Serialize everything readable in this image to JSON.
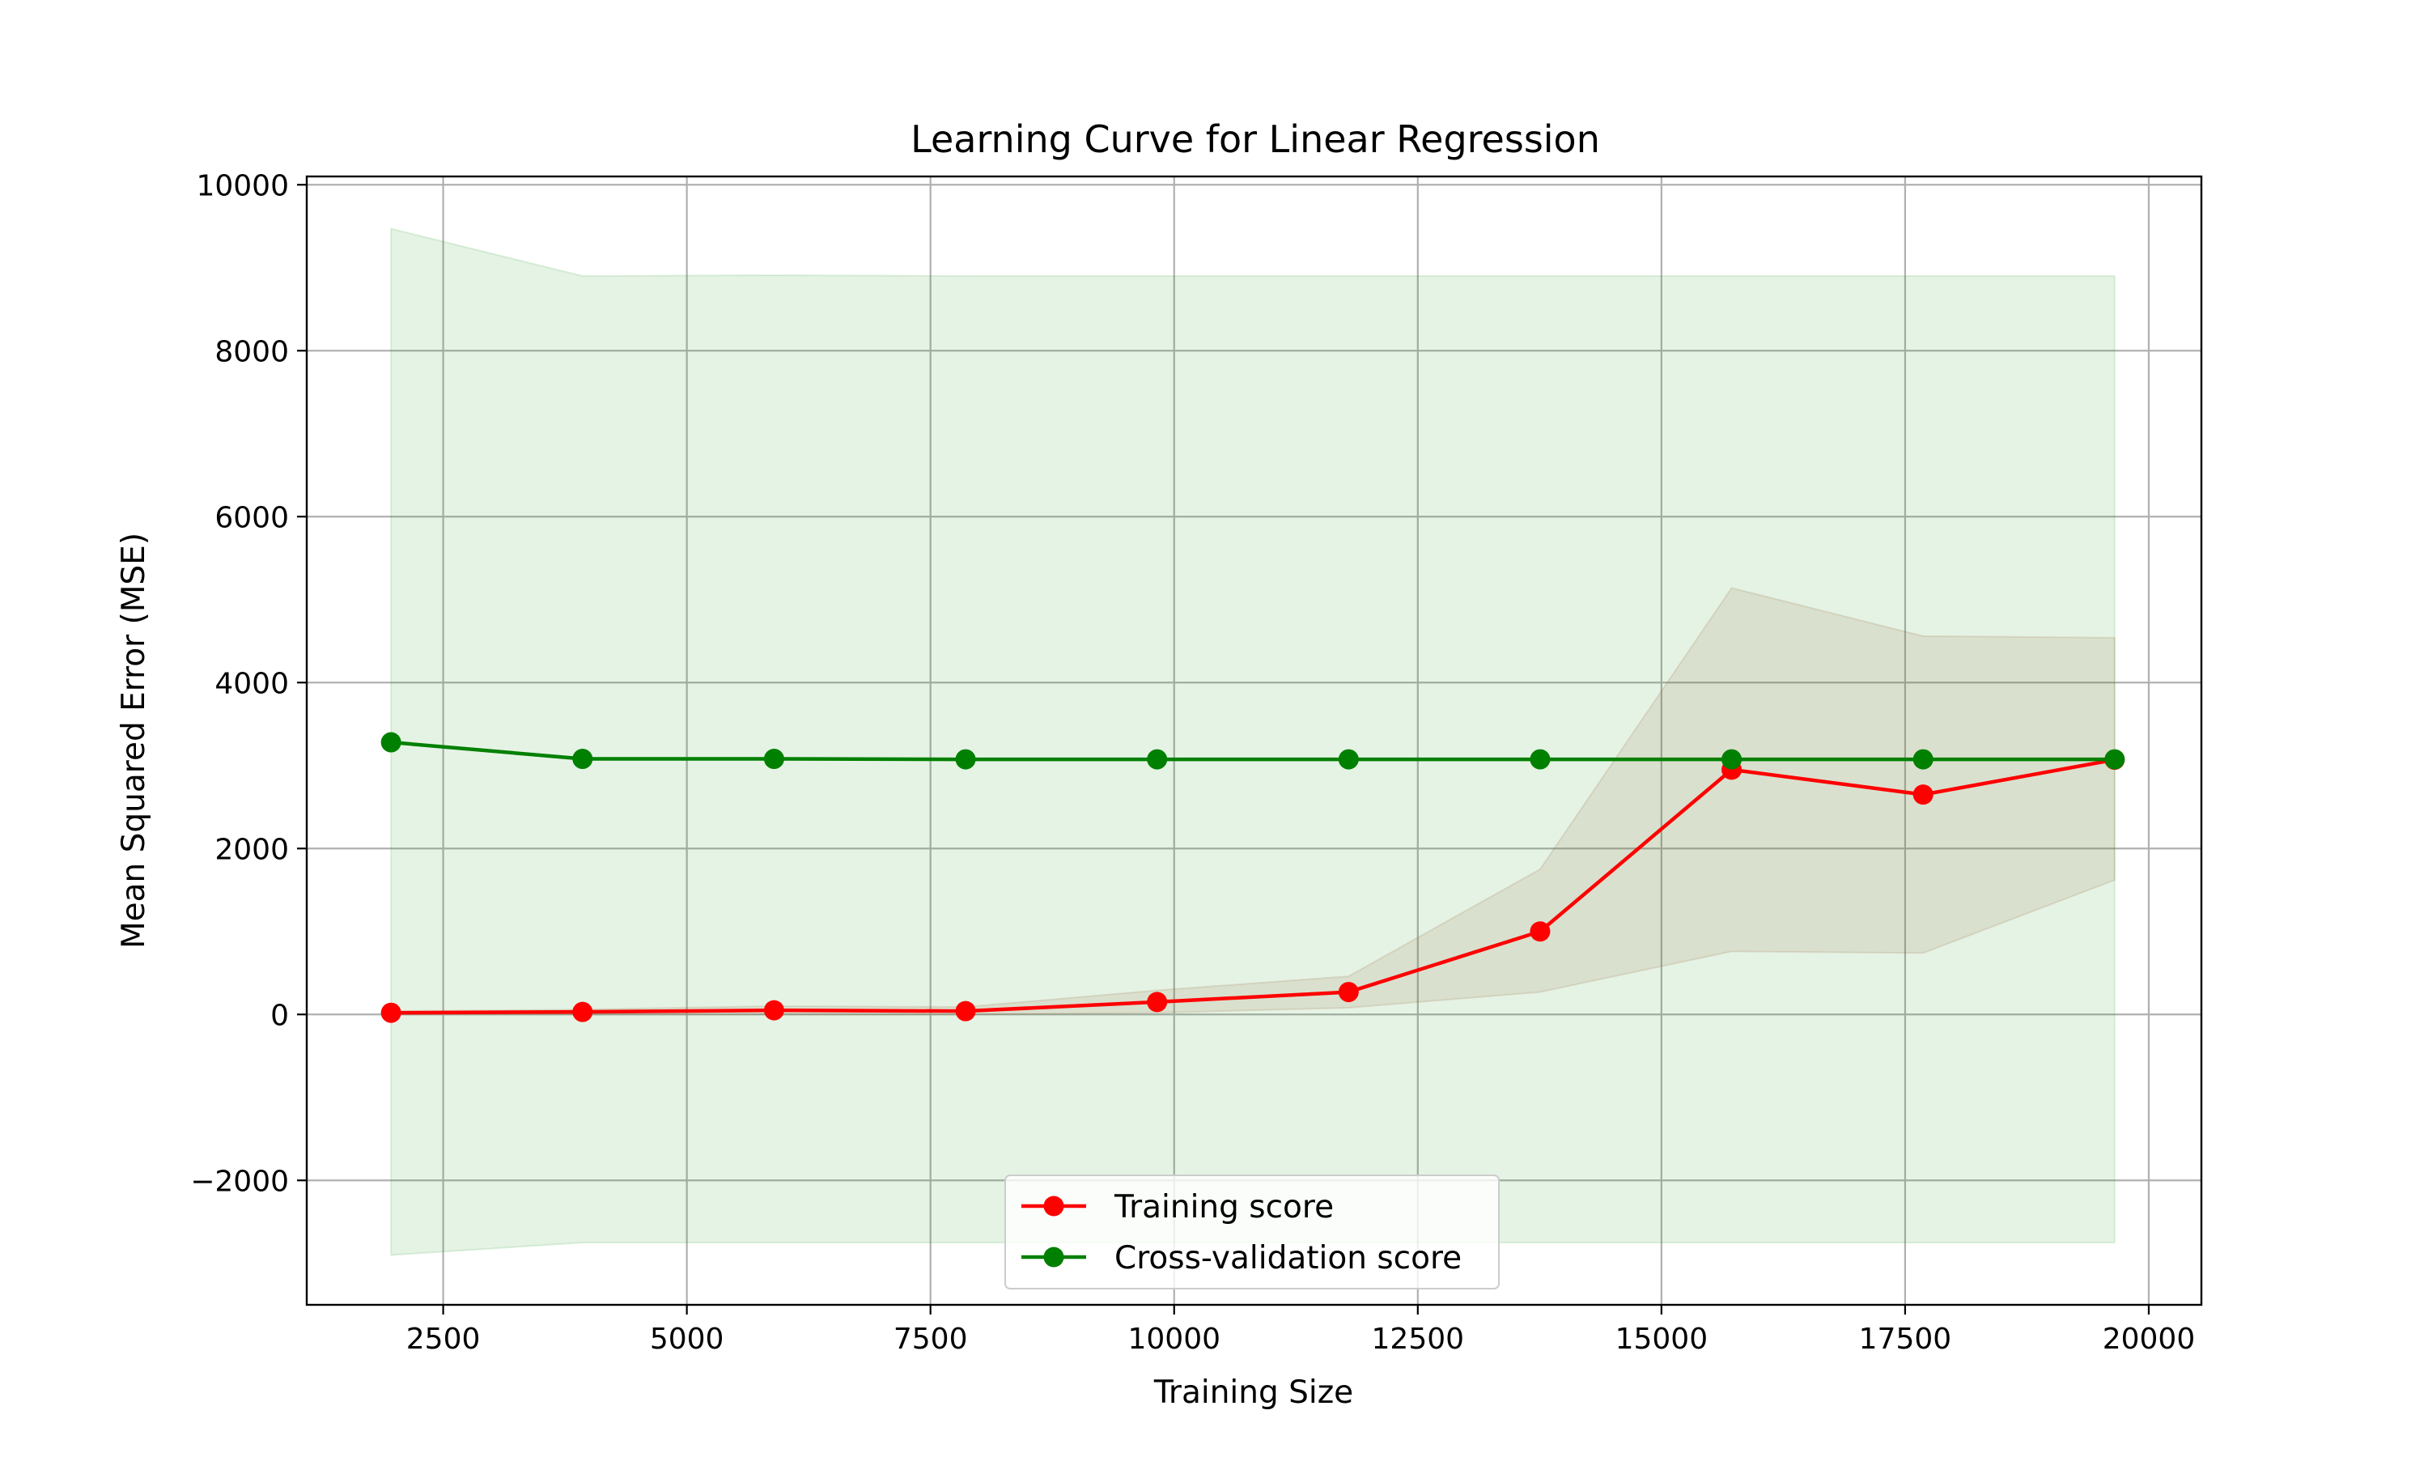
{
  "chart_data": {
    "type": "line",
    "title": "Learning Curve for Linear Regression",
    "xlabel": "Training Size",
    "ylabel": "Mean Squared Error (MSE)",
    "xlim": [
      1100,
      20540
    ],
    "ylim": [
      -3500,
      10100
    ],
    "xticks": [
      2500,
      5000,
      7500,
      10000,
      12500,
      15000,
      17500,
      20000
    ],
    "yticks": [
      -2000,
      0,
      2000,
      4000,
      6000,
      8000,
      10000
    ],
    "grid": true,
    "legend_position": "bottom-center",
    "x": [
      1965,
      3930,
      5895,
      7860,
      9825,
      11790,
      13755,
      15720,
      17685,
      19650
    ],
    "series": [
      {
        "name": "Training score",
        "color": "#ff0000",
        "band_color": "#a0522d",
        "values": [
          20,
          30,
          50,
          40,
          150,
          270,
          1000,
          2950,
          2650,
          3070
        ],
        "band_lower": [
          0,
          0,
          0,
          0,
          20,
          80,
          270,
          760,
          740,
          1620
        ],
        "band_upper": [
          40,
          60,
          100,
          90,
          290,
          460,
          1750,
          5140,
          4560,
          4540
        ]
      },
      {
        "name": "Cross-validation score",
        "color": "#008000",
        "band_color": "#2ca02c",
        "values": [
          3280,
          3080,
          3080,
          3075,
          3075,
          3075,
          3075,
          3075,
          3075,
          3075
        ],
        "band_lower": [
          -2900,
          -2750,
          -2750,
          -2750,
          -2750,
          -2750,
          -2750,
          -2750,
          -2750,
          -2750
        ],
        "band_upper": [
          9470,
          8900,
          8910,
          8900,
          8900,
          8900,
          8900,
          8900,
          8900,
          8900
        ]
      }
    ]
  }
}
